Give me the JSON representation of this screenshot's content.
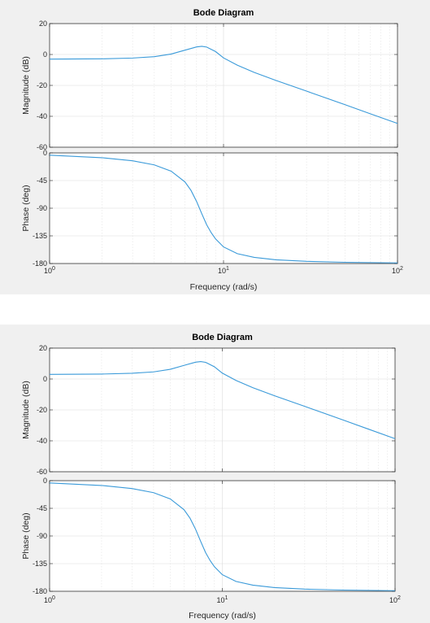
{
  "chart_data": [
    {
      "type": "line",
      "title": "Bode Diagram",
      "xlabel": "Frequency  (rad/s)",
      "xscale": "log",
      "xlim": [
        1,
        100
      ],
      "x_ticks": [
        1,
        10,
        100
      ],
      "x_tick_labels": [
        {
          "base": "10",
          "exp": "0"
        },
        {
          "base": "10",
          "exp": "1"
        },
        {
          "base": "10",
          "exp": "2"
        }
      ],
      "grid": true,
      "color": "#3a9ad9",
      "panels": [
        {
          "name": "magnitude",
          "ylabel": "Magnitude (dB)",
          "ylim": [
            -60,
            20
          ],
          "y_ticks": [
            20,
            0,
            -20,
            -40,
            -60
          ],
          "series": [
            {
              "x": [
                1,
                2,
                3,
                4,
                5,
                6,
                7,
                7.5,
                8,
                9,
                10,
                12,
                15,
                20,
                30,
                50,
                70,
                100
              ],
              "y": [
                -3,
                -2.8,
                -2.3,
                -1.4,
                0.3,
                2.8,
                4.9,
                5.3,
                4.8,
                1.9,
                -2.2,
                -6.9,
                -11.6,
                -16.8,
                -23.7,
                -32.5,
                -38.4,
                -44.6
              ]
            }
          ]
        },
        {
          "name": "phase",
          "ylabel": "Phase (deg)",
          "ylim": [
            -180,
            0
          ],
          "y_ticks": [
            0,
            -45,
            -90,
            -135,
            -180
          ],
          "series": [
            {
              "x": [
                1,
                2,
                3,
                4,
                5,
                6,
                6.5,
                7,
                7.5,
                8,
                8.5,
                9,
                10,
                12,
                15,
                20,
                30,
                50,
                100
              ],
              "y": [
                -3.7,
                -7.8,
                -12.8,
                -19.5,
                -29.7,
                -47.2,
                -61,
                -79,
                -99,
                -117,
                -130,
                -140,
                -153,
                -164,
                -170,
                -174,
                -176.5,
                -178,
                -179
              ]
            }
          ]
        }
      ]
    },
    {
      "type": "line",
      "title": "Bode Diagram",
      "xlabel": "Frequency  (rad/s)",
      "xscale": "log",
      "xlim": [
        1,
        100
      ],
      "x_ticks": [
        1,
        10,
        100
      ],
      "x_tick_labels": [
        {
          "base": "10",
          "exp": "0"
        },
        {
          "base": "10",
          "exp": "1"
        },
        {
          "base": "10",
          "exp": "2"
        }
      ],
      "grid": true,
      "color": "#3a9ad9",
      "panels": [
        {
          "name": "magnitude",
          "ylabel": "Magnitude (dB)",
          "ylim": [
            -60,
            20
          ],
          "y_ticks": [
            20,
            0,
            -20,
            -40,
            -60
          ],
          "series": [
            {
              "x": [
                1,
                2,
                3,
                4,
                5,
                6,
                7,
                7.5,
                8,
                9,
                10,
                12,
                15,
                20,
                30,
                50,
                70,
                100
              ],
              "y": [
                3,
                3.2,
                3.7,
                4.6,
                6.3,
                8.8,
                10.9,
                11.3,
                10.8,
                7.9,
                3.8,
                -0.9,
                -5.6,
                -10.8,
                -17.7,
                -26.5,
                -32.4,
                -38.6
              ]
            }
          ]
        },
        {
          "name": "phase",
          "ylabel": "Phase (deg)",
          "ylim": [
            -180,
            0
          ],
          "y_ticks": [
            0,
            -45,
            -90,
            -135,
            -180
          ],
          "series": [
            {
              "x": [
                1,
                2,
                3,
                4,
                5,
                6,
                6.5,
                7,
                7.5,
                8,
                8.5,
                9,
                10,
                12,
                15,
                20,
                30,
                50,
                100
              ],
              "y": [
                -3.7,
                -7.8,
                -12.8,
                -19.5,
                -29.7,
                -47.2,
                -61,
                -79,
                -99,
                -117,
                -130,
                -140,
                -153,
                -164,
                -170,
                -174,
                -176.5,
                -178,
                -179
              ]
            }
          ]
        }
      ]
    }
  ]
}
